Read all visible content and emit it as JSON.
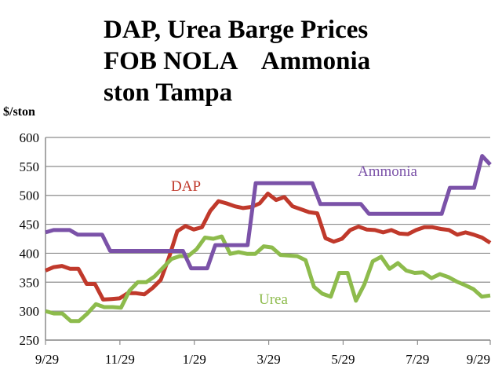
{
  "chart_data": {
    "type": "line",
    "title_lines": [
      "DAP, Urea Barge Prices",
      "FOB NOLA    Ammonia",
      "ston Tampa"
    ],
    "ylabel": "$/ston",
    "ylim": [
      250,
      600
    ],
    "yticks": [
      250,
      300,
      350,
      400,
      450,
      500,
      550,
      600
    ],
    "xlim": [
      0,
      52
    ],
    "xtick_positions": [
      0,
      8.7,
      17.4,
      26.1,
      34.8,
      43.5,
      52
    ],
    "xtick_labels": [
      "9/29",
      "11/29",
      "1/29",
      "3/29",
      "5/29",
      "7/29",
      "9/29"
    ],
    "grid": true,
    "legend": "inline labels",
    "series": [
      {
        "name": "DAP",
        "color": "#c0392b",
        "values": [
          370,
          376,
          378,
          373,
          373,
          347,
          347,
          320,
          321,
          322,
          331,
          331,
          329,
          340,
          354,
          393,
          438,
          447,
          441,
          445,
          473,
          490,
          486,
          481,
          478,
          480,
          486,
          503,
          492,
          497,
          481,
          476,
          471,
          469,
          426,
          420,
          425,
          440,
          446,
          441,
          440,
          436,
          440,
          434,
          433,
          440,
          445,
          445,
          442,
          440,
          432,
          436,
          432,
          427,
          418
        ]
      },
      {
        "name": "Urea",
        "color": "#8dbb4c",
        "values": [
          300,
          296,
          296,
          283,
          283,
          296,
          312,
          307,
          307,
          306,
          335,
          350,
          350,
          360,
          375,
          390,
          395,
          395,
          407,
          427,
          425,
          429,
          399,
          402,
          399,
          399,
          412,
          410,
          397,
          396,
          395,
          388,
          342,
          330,
          325,
          366,
          366,
          318,
          346,
          386,
          394,
          373,
          383,
          370,
          366,
          367,
          357,
          364,
          359,
          351,
          345,
          338,
          325,
          327
        ]
      },
      {
        "name": "Ammonia",
        "color": "#7b52a8",
        "values": [
          436,
          440,
          440,
          440,
          432,
          432,
          432,
          432,
          404,
          404,
          404,
          404,
          404,
          404,
          404,
          404,
          404,
          404,
          374,
          374,
          374,
          414,
          414,
          414,
          414,
          414,
          521,
          521,
          521,
          521,
          521,
          521,
          521,
          521,
          485,
          485,
          485,
          485,
          485,
          485,
          468,
          468,
          468,
          468,
          468,
          468,
          468,
          468,
          468,
          468,
          513,
          513,
          513,
          513,
          568,
          553
        ]
      }
    ]
  }
}
